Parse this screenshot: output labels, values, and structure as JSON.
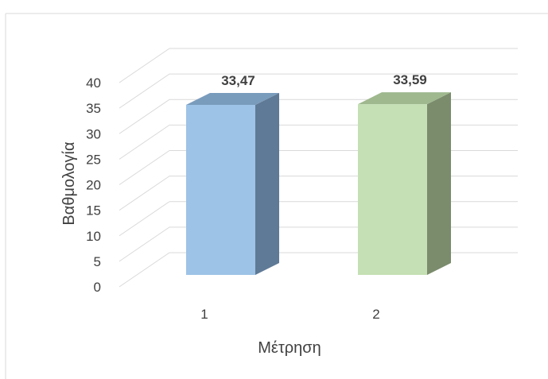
{
  "chart_data": {
    "type": "bar",
    "title": "",
    "xlabel": "Μέτρηση",
    "ylabel": "Βαθμολογία",
    "categories": [
      "1",
      "2"
    ],
    "values": [
      33.47,
      33.59
    ],
    "data_labels": [
      "33,47",
      "33,59"
    ],
    "ylim": [
      0,
      40
    ],
    "yticks": [
      "0",
      "5",
      "10",
      "15",
      "20",
      "25",
      "30",
      "35",
      "40"
    ],
    "grid": true,
    "legend": "none",
    "style": "3d-column",
    "colors": {
      "bar_front": [
        "#9dc3e6",
        "#c5e0b4"
      ],
      "bar_side": [
        "#5f7a96",
        "#7a8c6c"
      ],
      "bar_top": [
        "#7a9cbc",
        "#9fb88e"
      ],
      "grid": "#d9d9d9",
      "frame": "#d9d9d9",
      "text": "#404040"
    }
  }
}
